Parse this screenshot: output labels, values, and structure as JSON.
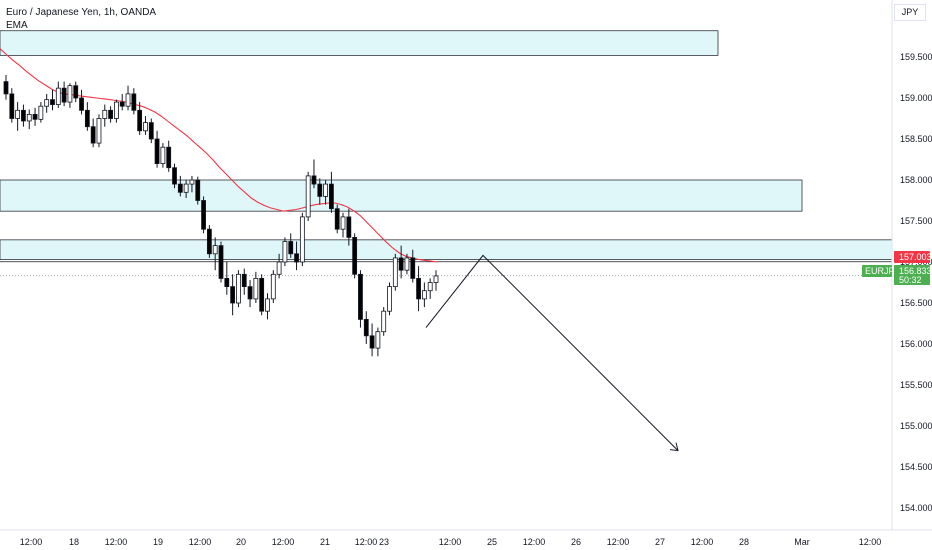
{
  "legend": {
    "symbol_line": "Euro / Japanese Yen, 1h, OANDA",
    "indicator": "EMA"
  },
  "currency_button": "JPY",
  "price_tags": {
    "ema_value": "157.003",
    "symbol": "EURJPY",
    "last_price": "156.833",
    "countdown": "50:32"
  },
  "colors": {
    "up": "#26a69a",
    "down": "#ef5350",
    "candle_body_up": "#ffffff",
    "candle_body_down": "#000000",
    "ema": "#f23645",
    "zone_fill": "#e0f7fa",
    "zone_border": "#131722",
    "tag_ema": "#f23645",
    "tag_last": "#4caf50",
    "arrow": "#131722"
  },
  "chart_data": {
    "type": "candlestick",
    "title": "Euro / Japanese Yen, 1h, OANDA",
    "xlabel": "",
    "ylabel": "",
    "ylim": [
      153.6,
      160.15
    ],
    "y_ticks": [
      "159.500",
      "159.000",
      "158.500",
      "158.000",
      "157.500",
      "157.000",
      "156.500",
      "156.000",
      "155.500",
      "155.000",
      "154.500",
      "154.000"
    ],
    "x_ticks": [
      "12:00",
      "18",
      "12:00",
      "19",
      "12:00",
      "20",
      "12:00",
      "21",
      "12:00",
      "23",
      "12:00",
      "25",
      "12:00",
      "26",
      "12:00",
      "27",
      "12:00",
      "28",
      "Mar",
      "12:00"
    ],
    "zones": [
      {
        "low": 159.52,
        "high": 159.82
      },
      {
        "low": 157.62,
        "high": 158.0
      },
      {
        "low": 157.03,
        "high": 157.27
      }
    ],
    "horizontal_lines": [
      157.003,
      156.833
    ],
    "projection_path": [
      {
        "x": "23 07:00",
        "y": 156.2
      },
      {
        "x": "24 12:00",
        "y": 157.08
      },
      {
        "x": "27 04:00",
        "y": 154.7
      }
    ],
    "series": [
      {
        "name": "EURJPY",
        "type": "candlestick",
        "ohlc": [
          [
            159.2,
            159.28,
            158.98,
            159.05
          ],
          [
            159.05,
            159.12,
            158.7,
            158.75
          ],
          [
            158.75,
            158.95,
            158.6,
            158.85
          ],
          [
            158.85,
            158.92,
            158.65,
            158.72
          ],
          [
            158.72,
            158.86,
            158.62,
            158.8
          ],
          [
            158.8,
            158.88,
            158.66,
            158.74
          ],
          [
            158.74,
            158.95,
            158.7,
            158.9
          ],
          [
            158.9,
            159.05,
            158.82,
            158.98
          ],
          [
            158.98,
            159.1,
            158.85,
            158.92
          ],
          [
            158.92,
            159.2,
            158.88,
            159.12
          ],
          [
            159.12,
            159.2,
            158.9,
            158.95
          ],
          [
            158.95,
            159.18,
            158.88,
            159.15
          ],
          [
            159.15,
            159.2,
            158.95,
            159.0
          ],
          [
            159.0,
            159.1,
            158.8,
            158.85
          ],
          [
            158.85,
            158.95,
            158.6,
            158.65
          ],
          [
            158.65,
            158.75,
            158.4,
            158.45
          ],
          [
            158.45,
            158.8,
            158.4,
            158.75
          ],
          [
            158.75,
            158.92,
            158.65,
            158.85
          ],
          [
            158.85,
            158.9,
            158.7,
            158.75
          ],
          [
            158.75,
            158.98,
            158.7,
            158.95
          ],
          [
            158.95,
            159.05,
            158.85,
            158.9
          ],
          [
            158.9,
            159.15,
            158.85,
            159.05
          ],
          [
            159.05,
            159.12,
            158.8,
            158.85
          ],
          [
            158.85,
            158.95,
            158.55,
            158.6
          ],
          [
            158.6,
            158.78,
            158.55,
            158.7
          ],
          [
            158.7,
            158.75,
            158.45,
            158.5
          ],
          [
            158.5,
            158.6,
            158.15,
            158.2
          ],
          [
            158.2,
            158.45,
            158.15,
            158.4
          ],
          [
            158.4,
            158.48,
            158.1,
            158.15
          ],
          [
            158.15,
            158.2,
            157.9,
            157.95
          ],
          [
            157.95,
            158.05,
            157.8,
            157.85
          ],
          [
            157.85,
            158.0,
            157.78,
            157.95
          ],
          [
            157.95,
            158.05,
            157.85,
            158.0
          ],
          [
            158.0,
            158.04,
            157.7,
            157.75
          ],
          [
            157.75,
            157.8,
            157.35,
            157.4
          ],
          [
            157.4,
            157.45,
            157.05,
            157.1
          ],
          [
            157.1,
            157.3,
            156.9,
            157.2
          ],
          [
            157.2,
            157.25,
            156.75,
            156.8
          ],
          [
            156.8,
            157.0,
            156.6,
            156.7
          ],
          [
            156.7,
            156.85,
            156.35,
            156.5
          ],
          [
            156.5,
            156.9,
            156.45,
            156.85
          ],
          [
            156.85,
            156.92,
            156.6,
            156.7
          ],
          [
            156.7,
            156.78,
            156.45,
            156.55
          ],
          [
            156.55,
            156.88,
            156.5,
            156.8
          ],
          [
            156.8,
            156.85,
            156.35,
            156.4
          ],
          [
            156.4,
            156.62,
            156.3,
            156.55
          ],
          [
            156.55,
            156.9,
            156.5,
            156.85
          ],
          [
            156.85,
            157.1,
            156.8,
            157.0
          ],
          [
            157.0,
            157.3,
            156.95,
            157.25
          ],
          [
            157.25,
            157.35,
            157.05,
            157.1
          ],
          [
            157.1,
            157.25,
            156.9,
            157.0
          ],
          [
            157.0,
            157.6,
            156.95,
            157.55
          ],
          [
            157.55,
            158.1,
            157.5,
            158.05
          ],
          [
            158.05,
            158.25,
            157.9,
            157.95
          ],
          [
            157.95,
            158.02,
            157.7,
            157.8
          ],
          [
            157.8,
            158.0,
            157.7,
            157.95
          ],
          [
            157.95,
            158.1,
            157.6,
            157.65
          ],
          [
            157.65,
            157.7,
            157.35,
            157.4
          ],
          [
            157.4,
            157.6,
            157.3,
            157.55
          ],
          [
            157.55,
            157.65,
            157.2,
            157.3
          ],
          [
            157.3,
            157.35,
            156.8,
            156.85
          ],
          [
            156.85,
            156.9,
            156.2,
            156.3
          ],
          [
            156.3,
            156.4,
            156.0,
            156.1
          ],
          [
            156.1,
            156.25,
            155.85,
            155.95
          ],
          [
            155.95,
            156.2,
            155.85,
            156.15
          ],
          [
            156.15,
            156.45,
            156.1,
            156.4
          ],
          [
            156.4,
            156.75,
            156.35,
            156.7
          ],
          [
            156.7,
            157.1,
            156.65,
            157.05
          ],
          [
            157.05,
            157.2,
            156.8,
            156.9
          ],
          [
            156.9,
            157.1,
            156.85,
            157.05
          ],
          [
            157.05,
            157.15,
            156.75,
            156.8
          ],
          [
            156.8,
            156.95,
            156.4,
            156.55
          ],
          [
            156.55,
            156.75,
            156.45,
            156.65
          ],
          [
            156.65,
            156.8,
            156.55,
            156.75
          ],
          [
            156.75,
            156.9,
            156.65,
            156.83
          ]
        ]
      },
      {
        "name": "EMA",
        "type": "line",
        "values": [
          159.6,
          159.53,
          159.46,
          159.4,
          159.33,
          159.27,
          159.21,
          159.16,
          159.11,
          159.07,
          159.05,
          159.04,
          159.03,
          159.02,
          159.01,
          159.0,
          158.99,
          158.98,
          158.97,
          158.96,
          158.94,
          158.92,
          158.9,
          158.87,
          158.83,
          158.78,
          158.72,
          158.66,
          158.6,
          158.54,
          158.47,
          158.4,
          158.33,
          158.25,
          158.16,
          158.08,
          158.0,
          157.92,
          157.85,
          157.78,
          157.73,
          157.69,
          157.66,
          157.64,
          157.62,
          157.63,
          157.64,
          157.66,
          157.68,
          157.7,
          157.71,
          157.72,
          157.72,
          157.7,
          157.67,
          157.62,
          157.56,
          157.48,
          157.4,
          157.32,
          157.24,
          157.17,
          157.11,
          157.07,
          157.05,
          157.03,
          157.02,
          157.01,
          157.0
        ]
      }
    ]
  }
}
